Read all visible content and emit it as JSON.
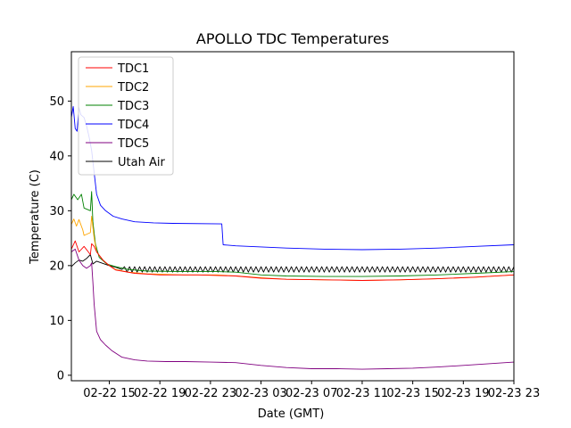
{
  "chart_data": {
    "type": "line",
    "title": "APOLLO TDC Temperatures",
    "xlabel": "Date (GMT)",
    "ylabel": "Temperature (C)",
    "xlim": [
      0,
      35
    ],
    "ylim": [
      -1,
      59
    ],
    "x_units": "hours since 02-22 12:00 GMT",
    "x_ticks": [
      {
        "value": 3,
        "label": "02-22 15"
      },
      {
        "value": 7,
        "label": "02-22 19"
      },
      {
        "value": 11,
        "label": "02-22 23"
      },
      {
        "value": 15,
        "label": "02-23 03"
      },
      {
        "value": 19,
        "label": "02-23 07"
      },
      {
        "value": 23,
        "label": "02-23 11"
      },
      {
        "value": 27,
        "label": "02-23 15"
      },
      {
        "value": 31,
        "label": "02-23 19"
      },
      {
        "value": 35,
        "label": "02-23 23"
      }
    ],
    "y_ticks": [
      0,
      10,
      20,
      30,
      40,
      50
    ],
    "legend_position": "top-left",
    "series": [
      {
        "name": "TDC1",
        "color": "#ff0000",
        "x": [
          0,
          0.3,
          0.6,
          1.0,
          1.5,
          1.6,
          1.8,
          2.0,
          2.5,
          3.0,
          3.5,
          5.0,
          7.0,
          10.0,
          11.5,
          13.0,
          15.0,
          17.0,
          20.0,
          23.0,
          26.0,
          29.0,
          32.0,
          35.0
        ],
        "y": [
          23,
          24.5,
          22.5,
          23.5,
          22,
          24,
          23.5,
          22.5,
          21,
          20,
          19.2,
          18.6,
          18.3,
          18.3,
          18.2,
          18.1,
          17.7,
          17.5,
          17.4,
          17.3,
          17.4,
          17.6,
          17.9,
          18.3
        ]
      },
      {
        "name": "TDC2",
        "color": "#ffa500",
        "x": [
          0,
          0.2,
          0.4,
          0.6,
          0.9,
          1.0,
          1.5,
          1.6,
          1.7,
          1.8,
          2.0,
          2.5,
          3.0,
          3.5,
          4.5,
          6.0,
          9.0,
          11.5,
          13.0,
          15.0,
          17.0,
          20.0,
          23.0,
          26.0,
          29.0,
          32.0,
          35.0
        ],
        "y": [
          27.5,
          28.5,
          27.2,
          28.4,
          26.5,
          25.5,
          26.0,
          29.0,
          27.0,
          25.0,
          22.5,
          21,
          20,
          19.3,
          18.8,
          18.5,
          18.3,
          18.3,
          18.1,
          17.8,
          17.5,
          17.4,
          17.3,
          17.4,
          17.6,
          17.9,
          18.3
        ]
      },
      {
        "name": "TDC3",
        "color": "#008000",
        "x": [
          0,
          0.2,
          0.5,
          0.8,
          1.0,
          1.5,
          1.6,
          1.7,
          1.9,
          2.2,
          2.8,
          3.5,
          4.5,
          6.0,
          9.0,
          11.5,
          13.0,
          15.0,
          17.0,
          20.0,
          23.0,
          26.0,
          29.0,
          32.0,
          35.0
        ],
        "y": [
          32,
          33,
          32,
          33,
          30.5,
          30,
          33.5,
          28,
          24,
          21.5,
          20.3,
          19.8,
          19.3,
          19.0,
          18.9,
          18.9,
          18.8,
          18.3,
          18.1,
          18.0,
          18.0,
          18.1,
          18.3,
          18.6,
          18.9
        ]
      },
      {
        "name": "TDC4",
        "color": "#0000ff",
        "x": [
          0,
          0.15,
          0.3,
          0.45,
          0.6,
          0.75,
          1.0,
          1.2,
          1.4,
          1.6,
          1.8,
          2.0,
          2.3,
          2.7,
          3.3,
          4.0,
          5.0,
          6.5,
          8.0,
          11.9,
          12.0,
          13.0,
          15.0,
          17.0,
          20.0,
          23.0,
          26.0,
          29.0,
          32.0,
          35.0
        ],
        "y": [
          47,
          49,
          45,
          44.5,
          48.8,
          47.5,
          47,
          45.5,
          43.5,
          41,
          37,
          33,
          31,
          30,
          29,
          28.5,
          28,
          27.8,
          27.7,
          27.6,
          23.8,
          23.6,
          23.4,
          23.2,
          23.0,
          22.9,
          23.0,
          23.2,
          23.5,
          23.8
        ]
      },
      {
        "name": "TDC5",
        "color": "#800080",
        "x": [
          0,
          0.3,
          0.6,
          0.9,
          1.2,
          1.5,
          1.6,
          1.7,
          1.8,
          2.0,
          2.3,
          2.7,
          3.2,
          4.0,
          5.0,
          6.0,
          7.5,
          9.0,
          11.0,
          13.0,
          15.0,
          17.0,
          19.0,
          21.0,
          23.0,
          25.0,
          27.0,
          29.0,
          31.0,
          33.0,
          35.0
        ],
        "y": [
          22.5,
          23,
          21,
          20,
          19.5,
          20,
          20.5,
          17,
          13,
          8,
          6.5,
          5.5,
          4.5,
          3.3,
          2.8,
          2.6,
          2.5,
          2.5,
          2.4,
          2.3,
          1.8,
          1.4,
          1.2,
          1.2,
          1.1,
          1.2,
          1.3,
          1.5,
          1.8,
          2.1,
          2.4
        ]
      },
      {
        "name": "Utah Air",
        "color": "#000000",
        "x": [
          0,
          0.3,
          0.6,
          0.9,
          1.2,
          1.5,
          1.7,
          2.0,
          2.5,
          3.0,
          3.5,
          4.0,
          35.0
        ],
        "y": [
          19.8,
          20.5,
          21,
          20.8,
          21.3,
          22,
          20.3,
          20.8,
          20.4,
          20.0,
          19.7,
          19.3,
          19.3
        ],
        "oscillation": {
          "start": 4.0,
          "period": 0.4,
          "amplitude": 0.5
        }
      }
    ]
  }
}
